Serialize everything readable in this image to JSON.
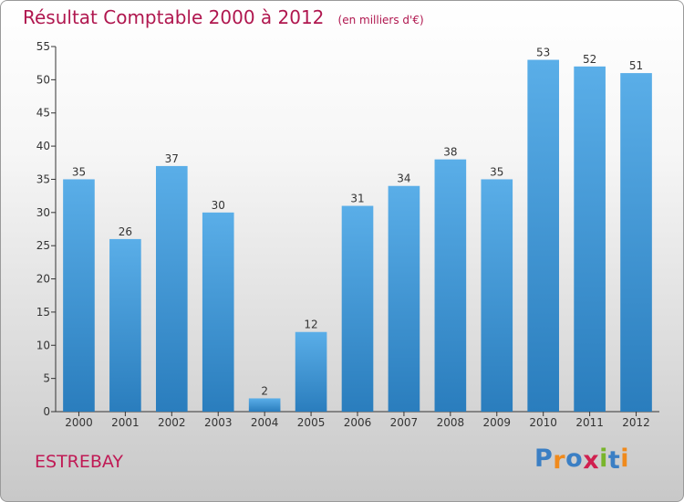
{
  "header": {
    "title": "Résultat Comptable 2000 à 2012",
    "subtitle": "(en milliers d'€)"
  },
  "footer": {
    "commune": "ESTREBAY",
    "logo_letters": [
      "P",
      "r",
      "o",
      "x",
      "i",
      "t",
      "i"
    ],
    "logo_colors": [
      "#3b7fc4",
      "#f08a1c",
      "#3b7fc4",
      "#d0204f",
      "#79b52b",
      "#3b7fc4",
      "#f08a1c"
    ]
  },
  "colors": {
    "bar_top": "#5aaee8",
    "bar_bottom": "#2a7dbd",
    "title": "#b0174f",
    "axis": "#333333"
  },
  "chart_data": {
    "type": "bar",
    "title": "Résultat Comptable 2000 à 2012",
    "subtitle": "(en milliers d'€)",
    "categories": [
      "2000",
      "2001",
      "2002",
      "2003",
      "2004",
      "2005",
      "2006",
      "2007",
      "2008",
      "2009",
      "2010",
      "2011",
      "2012"
    ],
    "values": [
      35,
      26,
      37,
      30,
      2,
      12,
      31,
      34,
      38,
      35,
      53,
      52,
      51
    ],
    "ylim": [
      0,
      55
    ],
    "yticks": [
      0,
      5,
      10,
      15,
      20,
      25,
      30,
      35,
      40,
      45,
      50,
      55
    ],
    "grid": false,
    "data_labels": true,
    "xlabel": "",
    "ylabel": ""
  }
}
